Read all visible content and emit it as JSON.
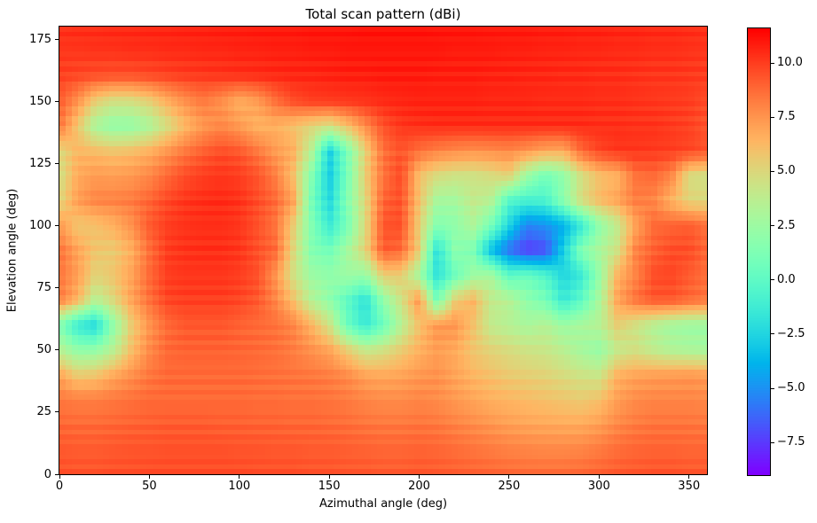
{
  "title": "Total scan pattern (dBi)",
  "xlabel": "Azimuthal angle (deg)",
  "ylabel": "Elevation angle (deg)",
  "x_ticks": [
    0,
    50,
    100,
    150,
    200,
    250,
    300,
    350
  ],
  "x_tick_labels": [
    "0",
    "50",
    "100",
    "150",
    "200",
    "250",
    "300",
    "350"
  ],
  "y_ticks": [
    0,
    25,
    50,
    75,
    100,
    125,
    150,
    175
  ],
  "y_tick_labels": [
    "0",
    "25",
    "50",
    "75",
    "100",
    "125",
    "150",
    "175"
  ],
  "colorbar": {
    "ticks": [
      10.0,
      7.5,
      5.0,
      2.5,
      0.0,
      -2.5,
      -5.0,
      -7.5
    ],
    "tick_labels": [
      "10.0",
      "7.5",
      "5.0",
      "2.5",
      "0.0",
      "−2.5",
      "−5.0",
      "−7.5"
    ],
    "vmin": -9.0,
    "vmax": 11.6,
    "colormap": "rainbow"
  },
  "chart_data": {
    "type": "heatmap",
    "title": "Total scan pattern (dBi)",
    "xlabel": "Azimuthal angle (deg)",
    "ylabel": "Elevation angle (deg)",
    "units": "dBi",
    "x_range": [
      0,
      360
    ],
    "y_range": [
      0,
      180
    ],
    "grid": {
      "az_start": 0,
      "az_end": 360,
      "az_step": 10,
      "el_start": 180,
      "el_end": 0,
      "el_step": -10
    },
    "note": "values_dbi rows ordered from elevation 180 (top) down to 0 (bottom); columns azimuth 0..360 step 10; approximate values read from rendered colors",
    "values_dbi": [
      [
        10.4,
        10.5,
        10.5,
        10.6,
        10.6,
        10.7,
        10.7,
        10.8,
        10.8,
        10.9,
        10.9,
        11.0,
        11.0,
        11.0,
        11.1,
        11.1,
        11.1,
        11.2,
        11.2,
        11.2,
        11.2,
        11.1,
        11.1,
        11.1,
        11.0,
        11.0,
        11.0,
        10.9,
        10.9,
        10.8,
        10.8,
        10.7,
        10.7,
        10.6,
        10.6,
        10.5,
        10.4
      ],
      [
        10.2,
        10.2,
        10.3,
        10.3,
        10.4,
        10.4,
        10.5,
        10.5,
        10.6,
        10.6,
        10.7,
        10.7,
        10.8,
        10.8,
        10.9,
        10.9,
        11.0,
        11.0,
        11.0,
        11.0,
        11.0,
        11.0,
        10.9,
        10.9,
        10.9,
        10.8,
        10.8,
        10.7,
        10.7,
        10.6,
        10.6,
        10.5,
        10.5,
        10.4,
        10.4,
        10.3,
        10.2
      ],
      [
        9.9,
        9.7,
        9.5,
        9.4,
        9.4,
        9.6,
        9.8,
        10.0,
        10.1,
        10.2,
        10.3,
        10.4,
        10.5,
        10.6,
        10.6,
        10.7,
        10.8,
        10.8,
        10.9,
        10.9,
        10.9,
        10.8,
        10.8,
        10.8,
        10.7,
        10.7,
        10.6,
        10.6,
        10.5,
        10.5,
        10.4,
        10.4,
        10.3,
        10.2,
        10.2,
        10.1,
        10.0
      ],
      [
        9.2,
        7.6,
        5.4,
        4.5,
        4.6,
        5.3,
        6.6,
        7.6,
        8.3,
        7.6,
        6.6,
        7.2,
        8.6,
        9.6,
        10.0,
        10.1,
        10.2,
        10.3,
        10.5,
        10.6,
        10.7,
        10.7,
        10.7,
        10.7,
        10.6,
        10.6,
        10.6,
        10.5,
        10.5,
        10.5,
        10.4,
        10.4,
        10.3,
        10.2,
        10.1,
        10.0,
        9.6
      ],
      [
        8.6,
        5.8,
        3.0,
        2.1,
        2.2,
        3.1,
        4.7,
        6.3,
        7.4,
        7.9,
        7.3,
        6.5,
        6.6,
        6.0,
        5.2,
        4.6,
        6.0,
        7.8,
        9.5,
        10.2,
        10.4,
        10.5,
        10.5,
        10.5,
        10.5,
        10.5,
        10.5,
        10.5,
        10.5,
        10.5,
        10.4,
        10.4,
        10.3,
        10.3,
        10.1,
        9.9,
        9.4
      ],
      [
        5.0,
        6.4,
        6.2,
        5.9,
        6.1,
        6.6,
        7.5,
        8.4,
        9.1,
        9.6,
        9.3,
        8.4,
        7.3,
        6.6,
        3.5,
        -2.8,
        1.2,
        5.4,
        8.6,
        9.4,
        8.6,
        8.1,
        7.8,
        7.6,
        7.7,
        7.9,
        7.5,
        6.9,
        6.8,
        8.8,
        9.8,
        10.2,
        10.2,
        10.1,
        10.0,
        9.8,
        9.4
      ],
      [
        4.5,
        6.8,
        7.3,
        7.2,
        7.4,
        7.9,
        8.8,
        9.6,
        10.0,
        10.2,
        10.0,
        9.4,
        8.2,
        6.0,
        1.5,
        -3.0,
        1.0,
        5.5,
        8.5,
        9.7,
        6.0,
        4.8,
        4.4,
        4.4,
        4.8,
        5.4,
        2.5,
        0.8,
        2.0,
        4.6,
        6.0,
        6.5,
        8.5,
        8.8,
        8.0,
        4.8,
        4.5
      ],
      [
        5.0,
        7.2,
        8.0,
        8.1,
        8.3,
        8.9,
        9.7,
        10.2,
        10.4,
        10.5,
        10.3,
        9.6,
        8.8,
        7.0,
        1.0,
        -2.5,
        1.5,
        5.0,
        9.0,
        9.5,
        6.0,
        2.8,
        2.8,
        4.0,
        3.5,
        -0.5,
        -1.0,
        -0.8,
        1.8,
        4.8,
        6.2,
        7.0,
        8.2,
        8.0,
        6.5,
        5.2,
        5.0
      ],
      [
        7.4,
        5.8,
        6.0,
        6.6,
        7.6,
        9.2,
        10.0,
        10.3,
        10.4,
        10.4,
        10.2,
        9.5,
        8.5,
        5.5,
        1.5,
        -1.5,
        1.0,
        5.0,
        9.4,
        9.6,
        5.5,
        1.5,
        2.0,
        3.2,
        1.0,
        -2.5,
        -5.5,
        -5.0,
        -4.0,
        -1.5,
        2.0,
        4.0,
        7.0,
        8.8,
        9.0,
        9.2,
        8.6
      ],
      [
        8.6,
        7.0,
        5.8,
        5.6,
        6.6,
        8.6,
        10.0,
        10.3,
        10.4,
        10.4,
        10.2,
        9.5,
        8.8,
        5.0,
        1.5,
        0.8,
        2.8,
        5.2,
        9.2,
        8.8,
        5.5,
        -2.0,
        1.8,
        1.2,
        -3.5,
        -6.0,
        -7.5,
        -7.0,
        -2.8,
        1.5,
        3.0,
        4.5,
        8.0,
        9.0,
        9.6,
        9.6,
        8.8
      ],
      [
        8.5,
        7.2,
        5.2,
        5.8,
        7.0,
        8.8,
        10.0,
        10.2,
        10.2,
        10.2,
        10.0,
        9.5,
        7.5,
        4.5,
        2.5,
        2.0,
        2.5,
        2.2,
        5.5,
        5.5,
        2.8,
        -2.0,
        0.5,
        2.5,
        3.0,
        0.0,
        0.5,
        -0.5,
        -2.5,
        -1.5,
        2.2,
        6.5,
        8.0,
        9.6,
        9.8,
        9.2,
        8.6
      ],
      [
        8.3,
        6.5,
        3.5,
        5.0,
        7.0,
        8.6,
        9.8,
        10.0,
        10.0,
        10.0,
        9.8,
        9.3,
        8.0,
        6.0,
        3.5,
        2.0,
        0.0,
        -2.0,
        2.0,
        4.5,
        7.5,
        1.0,
        5.5,
        6.5,
        4.0,
        3.5,
        2.0,
        1.0,
        -1.5,
        0.0,
        3.0,
        7.0,
        8.5,
        9.3,
        9.3,
        8.8,
        8.4
      ],
      [
        1.5,
        -1.5,
        -2.5,
        2.0,
        5.5,
        7.5,
        8.8,
        9.3,
        9.3,
        9.3,
        9.0,
        8.8,
        8.6,
        8.0,
        6.5,
        4.5,
        0.5,
        -1.5,
        0.5,
        3.5,
        6.0,
        7.5,
        7.5,
        6.0,
        4.0,
        3.5,
        3.0,
        3.5,
        2.5,
        3.0,
        3.5,
        5.5,
        4.5,
        3.5,
        2.8,
        2.5,
        2.5
      ],
      [
        3.5,
        2.0,
        2.0,
        3.5,
        6.0,
        7.8,
        8.8,
        9.0,
        9.0,
        9.0,
        8.9,
        8.8,
        8.6,
        8.2,
        7.6,
        7.0,
        5.5,
        4.0,
        4.5,
        5.5,
        6.5,
        7.2,
        6.8,
        5.8,
        5.2,
        4.8,
        4.4,
        4.2,
        3.6,
        2.8,
        2.2,
        4.0,
        4.5,
        3.8,
        3.2,
        3.0,
        2.8
      ],
      [
        7.0,
        5.5,
        5.8,
        6.8,
        7.6,
        8.4,
        8.8,
        8.8,
        8.8,
        8.8,
        8.8,
        8.7,
        8.6,
        8.5,
        8.4,
        8.2,
        7.8,
        7.0,
        6.8,
        7.0,
        7.4,
        7.6,
        7.0,
        6.4,
        6.0,
        5.6,
        5.4,
        5.2,
        4.8,
        4.4,
        4.2,
        6.5,
        7.0,
        7.2,
        7.3,
        7.4,
        7.2
      ],
      [
        8.4,
        8.2,
        8.2,
        8.4,
        8.6,
        8.8,
        8.8,
        8.8,
        8.8,
        8.8,
        8.8,
        8.7,
        8.7,
        8.6,
        8.6,
        8.5,
        8.3,
        8.0,
        7.8,
        7.8,
        8.0,
        7.8,
        7.4,
        7.0,
        6.6,
        6.4,
        6.2,
        6.0,
        5.8,
        5.6,
        6.0,
        7.2,
        7.8,
        8.0,
        8.0,
        8.0,
        7.9
      ],
      [
        8.9,
        8.8,
        8.8,
        8.9,
        9.0,
        9.1,
        9.2,
        9.2,
        9.2,
        9.1,
        9.1,
        9.0,
        9.0,
        8.9,
        8.9,
        8.8,
        8.7,
        8.5,
        8.4,
        8.4,
        8.5,
        8.4,
        8.1,
        7.8,
        7.5,
        7.2,
        7.0,
        6.9,
        6.8,
        6.8,
        7.2,
        7.9,
        8.3,
        8.5,
        8.5,
        8.5,
        8.4
      ],
      [
        9.3,
        9.2,
        9.2,
        9.3,
        9.4,
        9.4,
        9.5,
        9.5,
        9.5,
        9.5,
        9.4,
        9.4,
        9.3,
        9.3,
        9.2,
        9.2,
        9.1,
        9.0,
        8.9,
        8.9,
        9.0,
        8.9,
        8.7,
        8.5,
        8.3,
        8.1,
        8.0,
        7.9,
        7.9,
        8.0,
        8.3,
        8.7,
        8.9,
        9.0,
        9.0,
        8.9,
        8.9
      ],
      [
        9.5,
        9.4,
        9.4,
        9.5,
        9.5,
        9.6,
        9.6,
        9.6,
        9.6,
        9.6,
        9.6,
        9.5,
        9.5,
        9.5,
        9.4,
        9.4,
        9.3,
        9.3,
        9.2,
        9.2,
        9.3,
        9.2,
        9.1,
        9.0,
        8.9,
        8.8,
        8.7,
        8.7,
        8.7,
        8.8,
        9.0,
        9.2,
        9.3,
        9.4,
        9.4,
        9.3,
        9.3
      ]
    ]
  }
}
